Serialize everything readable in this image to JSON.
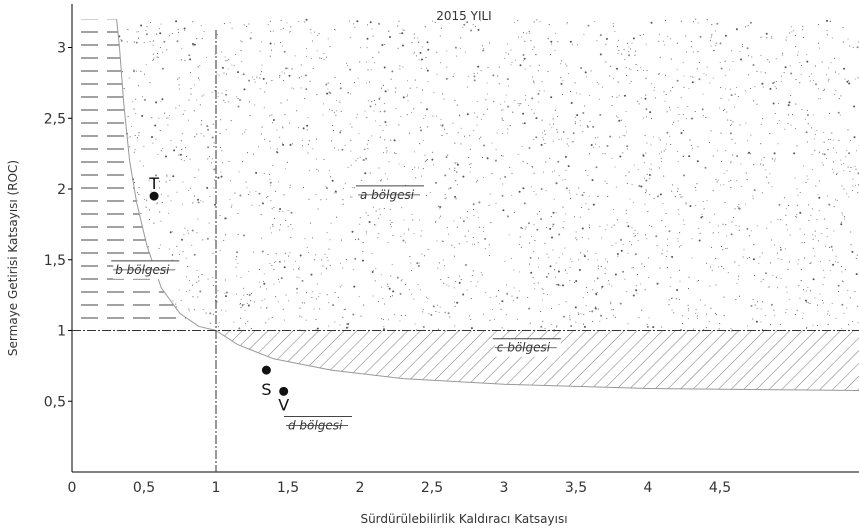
{
  "chart_data": {
    "type": "scatter",
    "title": "2015 YILI",
    "xlabel": "Sürdürülebilirlik Kaldıracı Katsayısı",
    "ylabel": "Sermaye Getirisi Katsayısı (ROC)",
    "xlim": [
      0,
      5.5
    ],
    "ylim": [
      0,
      3.2
    ],
    "x_ticks": [
      "0",
      "0,5",
      "1",
      "1,5",
      "2",
      "2,5",
      "3",
      "3,5",
      "4",
      "4,5"
    ],
    "x_tick_values": [
      0,
      0.5,
      1,
      1.5,
      2,
      2.5,
      3,
      3.5,
      4,
      4.5
    ],
    "y_ticks": [
      "0,5",
      "1",
      "1,5",
      "2",
      "2,5",
      "3"
    ],
    "y_tick_values": [
      0.5,
      1,
      1.5,
      2,
      2.5,
      3
    ],
    "reference_lines": {
      "x": 1,
      "y": 1
    },
    "points": [
      {
        "label": "T",
        "x": 0.57,
        "y": 1.95
      },
      {
        "label": "S",
        "x": 1.35,
        "y": 0.72
      },
      {
        "label": "V",
        "x": 1.47,
        "y": 0.57
      }
    ],
    "regions": [
      {
        "label": "a bölgesi",
        "x": 2.0,
        "y": 1.93,
        "pattern": "stipple"
      },
      {
        "label": "b bölgesi",
        "x": 0.3,
        "y": 1.4,
        "pattern": "horizontal dashes"
      },
      {
        "label": "c bölgesi",
        "x": 2.95,
        "y": 0.85,
        "pattern": "diagonal hatch"
      },
      {
        "label": "d bölgesi",
        "x": 1.5,
        "y": 0.3,
        "pattern": "none"
      }
    ]
  }
}
